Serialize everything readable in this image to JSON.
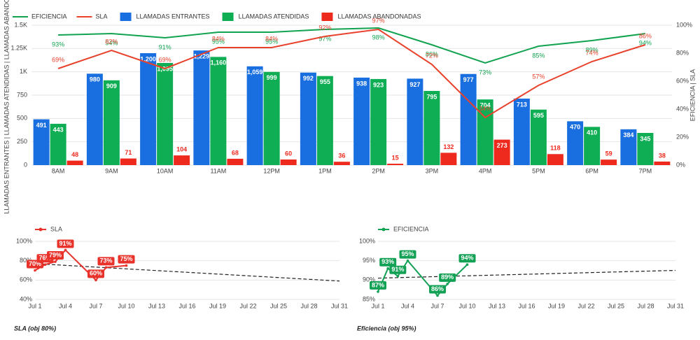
{
  "chart_data": [
    {
      "type": "combo",
      "y_label": "LLAMADAS ENTRANTES | LLAMADAS ATENDIDAS | LLAMADAS ABANDONADAS",
      "y2_label": "EFICIENCIA | SLA",
      "categories": [
        "8AM",
        "9AM",
        "10AM",
        "11AM",
        "12PM",
        "1PM",
        "2PM",
        "3PM",
        "4PM",
        "5PM",
        "6PM",
        "7PM"
      ],
      "ylim": [
        0,
        1500
      ],
      "yticks": [
        0,
        250,
        500,
        750,
        {
          "value": 1000,
          "label": "1K"
        },
        {
          "value": 1250,
          "label": "1.25K"
        },
        {
          "value": 1500,
          "label": "1.5K"
        }
      ],
      "y2lim": [
        0,
        100
      ],
      "y2ticks": [
        {
          "value": 0,
          "label": "0%"
        },
        {
          "value": 20,
          "label": "20%"
        },
        {
          "value": 40,
          "label": "40%"
        },
        {
          "value": 60,
          "label": "60%"
        },
        {
          "value": 80,
          "label": "80%"
        },
        {
          "value": 100,
          "label": "100%"
        }
      ],
      "grid": true,
      "series": [
        {
          "name": "EFICIENCIA",
          "type": "line",
          "axis": "y2",
          "color": "#11a34f",
          "values": [
            93,
            94,
            91,
            95,
            95,
            97,
            98,
            86,
            73,
            85,
            89,
            94
          ],
          "value_labels": [
            "93%",
            "94%",
            "91%",
            "95%",
            "95%",
            "97%",
            "98%",
            "86%",
            "73%",
            "85%",
            "89%",
            "94%"
          ]
        },
        {
          "name": "SLA",
          "type": "line",
          "axis": "y2",
          "color": "#e8412c",
          "values": [
            69,
            82,
            69,
            84,
            84,
            92,
            97,
            72,
            34,
            57,
            74,
            86
          ],
          "value_labels": [
            "69%",
            "82%",
            "69%",
            "84%",
            "84%",
            "92%",
            "97%",
            "72%",
            "34%",
            "57%",
            "74%",
            "86%"
          ]
        },
        {
          "name": "LLAMADAS ENTRANTES",
          "type": "bar",
          "color": "#1a6fe0",
          "values": [
            491,
            980,
            1200,
            1229,
            1059,
            992,
            938,
            927,
            977,
            713,
            470,
            384
          ],
          "value_labels": [
            "491",
            "980",
            "1,200",
            "1,229",
            "1,059",
            "992",
            "938",
            "927",
            "977",
            "713",
            "470",
            "384"
          ]
        },
        {
          "name": "LLAMADAS ATENDIDAS",
          "type": "bar",
          "color": "#0fae55",
          "values": [
            443,
            909,
            1095,
            1160,
            999,
            955,
            923,
            795,
            704,
            595,
            410,
            345
          ],
          "value_labels": [
            "443",
            "909",
            "1,095",
            "1,160",
            "999",
            "955",
            "923",
            "795",
            "704",
            "595",
            "410",
            "345"
          ]
        },
        {
          "name": "LLAMADAS ABANDONADAS",
          "type": "bar",
          "color": "#ee2a1e",
          "values": [
            48,
            71,
            104,
            68,
            60,
            36,
            15,
            132,
            273,
            118,
            59,
            38
          ]
        }
      ]
    },
    {
      "type": "line",
      "title": "SLA (obj 80%)",
      "xlim": [
        1,
        31
      ],
      "xticks": [
        {
          "value": 1,
          "label": "Jul 1"
        },
        {
          "value": 4,
          "label": "Jul 4"
        },
        {
          "value": 7,
          "label": "Jul 7"
        },
        {
          "value": 10,
          "label": "Jul 10"
        },
        {
          "value": 13,
          "label": "Jul 13"
        },
        {
          "value": 16,
          "label": "Jul 16"
        },
        {
          "value": 19,
          "label": "Jul 19"
        },
        {
          "value": 22,
          "label": "Jul 22"
        },
        {
          "value": 25,
          "label": "Jul 25"
        },
        {
          "value": 28,
          "label": "Jul 28"
        },
        {
          "value": 31,
          "label": "Jul 31"
        }
      ],
      "ylim": [
        40,
        100
      ],
      "yticks": [
        {
          "value": 40,
          "label": "40%"
        },
        {
          "value": 60,
          "label": "60%"
        },
        {
          "value": 80,
          "label": "80%"
        },
        {
          "value": 100,
          "label": "100%"
        }
      ],
      "series": [
        {
          "name": "SLA",
          "color": "#e8322a",
          "x": [
            1,
            2,
            3,
            4,
            7,
            8,
            10
          ],
          "values": [
            70,
            76,
            79,
            91,
            60,
            73,
            75
          ],
          "value_labels": [
            "70%",
            "76%",
            "79%",
            "91%",
            "60%",
            "73%",
            "75%"
          ]
        }
      ],
      "trendline": {
        "x": [
          1,
          31
        ],
        "values": [
          77,
          59
        ]
      }
    },
    {
      "type": "line",
      "title": "Eficiencia (obj 95%)",
      "xlim": [
        1,
        31
      ],
      "xticks": [
        {
          "value": 1,
          "label": "Jul 1"
        },
        {
          "value": 4,
          "label": "Jul 4"
        },
        {
          "value": 7,
          "label": "Jul 7"
        },
        {
          "value": 10,
          "label": "Jul 10"
        },
        {
          "value": 13,
          "label": "Jul 13"
        },
        {
          "value": 16,
          "label": "Jul 16"
        },
        {
          "value": 19,
          "label": "Jul 19"
        },
        {
          "value": 22,
          "label": "Jul 22"
        },
        {
          "value": 25,
          "label": "Jul 25"
        },
        {
          "value": 28,
          "label": "Jul 28"
        },
        {
          "value": 31,
          "label": "Jul 31"
        }
      ],
      "ylim": [
        85,
        100
      ],
      "yticks": [
        {
          "value": 85,
          "label": "85%"
        },
        {
          "value": 90,
          "label": "90%"
        },
        {
          "value": 95,
          "label": "95%"
        },
        {
          "value": 100,
          "label": "100%"
        }
      ],
      "series": [
        {
          "name": "EFICIENCIA",
          "color": "#13a156",
          "x": [
            1,
            2,
            3,
            4,
            7,
            8,
            10
          ],
          "values": [
            87,
            93,
            91,
            95,
            86,
            89,
            94
          ],
          "value_labels": [
            "87%",
            "93%",
            "91%",
            "95%",
            "86%",
            "89%",
            "94%"
          ]
        }
      ],
      "trendline": {
        "x": [
          1,
          31
        ],
        "values": [
          90.5,
          92.5
        ]
      }
    }
  ]
}
